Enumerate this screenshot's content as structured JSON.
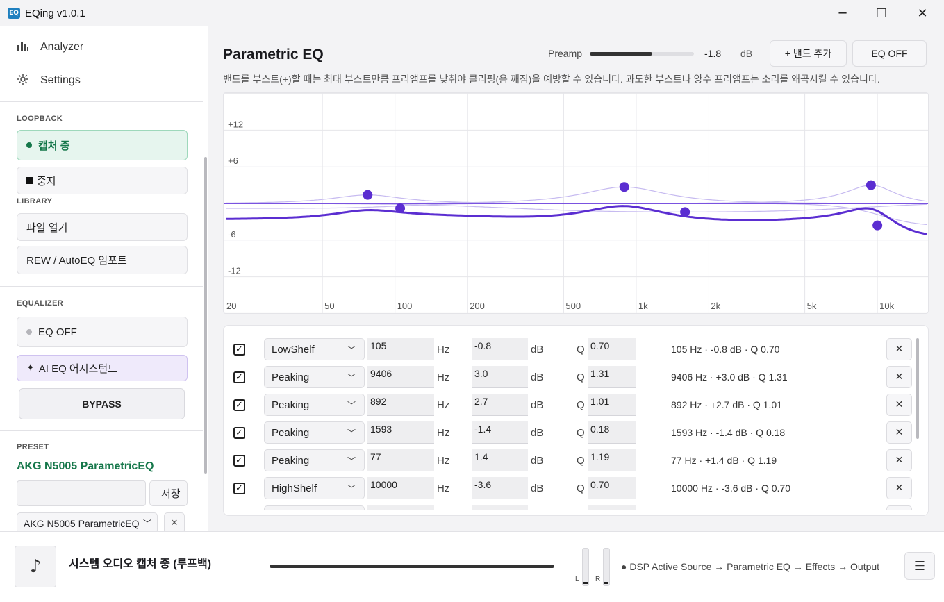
{
  "window": {
    "title": "EQing  v1.0.1",
    "icon_text": "EQ",
    "minimize": "─",
    "maximize": "☐",
    "close": "✕"
  },
  "sidebar": {
    "nav": [
      {
        "label": "Analyzer",
        "icon": "bar-chart-icon"
      },
      {
        "label": "Settings",
        "icon": "gear-icon"
      }
    ],
    "loopback": {
      "heading": "LOOPBACK",
      "capturing": "캡처 중",
      "stop": "중지"
    },
    "library": {
      "heading": "LIBRARY",
      "open_file": "파일 열기",
      "import": "REW / AutoEQ 임포트"
    },
    "equalizer": {
      "heading": "EQUALIZER",
      "eq_off": "EQ OFF",
      "ai_assistant": "AI EQ 어시스턴트",
      "bypass": "BYPASS"
    },
    "preset": {
      "heading": "PRESET",
      "name": "AKG N5005 ParametricEQ",
      "input_value": "",
      "save": "저장",
      "selected": "AKG N5005 ParametricEQ"
    }
  },
  "main": {
    "title": "Parametric EQ",
    "preamp": {
      "label": "Preamp",
      "value": "-1.8",
      "unit": "dB",
      "level": 0.6
    },
    "add_band": "+ 밴드 추가",
    "eq_off": "EQ OFF",
    "subtitle": "밴드를 부스트(+)할 때는 최대 부스트만큼 프리앰프를 낮춰야 클리핑(음 깨짐)을 예방할 수 있습니다. 과도한 부스트나 양수 프리앰프는 소리를 왜곡시킬 수 있습니다."
  },
  "graph": {
    "y_labels": [
      "+12",
      "+6",
      "-6",
      "-12"
    ],
    "x_labels": [
      "20",
      "50",
      "100",
      "200",
      "500",
      "1k",
      "2k",
      "5k",
      "10k"
    ],
    "colors": {
      "accent": "#5b2ed1",
      "grid": "#e6e6ea",
      "band_curve": "#c6baf0",
      "zero_line": "#7a52e0"
    }
  },
  "bands": [
    {
      "enabled": true,
      "type": "LowShelf",
      "freq": "105",
      "freq_unit": "Hz",
      "gain": "-0.8",
      "gain_unit": "dB",
      "q_label": "Q",
      "q": "0.70",
      "summary": "105 Hz · -0.8 dB · Q 0.70"
    },
    {
      "enabled": true,
      "type": "Peaking",
      "freq": "9406",
      "freq_unit": "Hz",
      "gain": "3.0",
      "gain_unit": "dB",
      "q_label": "Q",
      "q": "1.31",
      "summary": "9406 Hz · +3.0 dB · Q 1.31"
    },
    {
      "enabled": true,
      "type": "Peaking",
      "freq": "892",
      "freq_unit": "Hz",
      "gain": "2.7",
      "gain_unit": "dB",
      "q_label": "Q",
      "q": "1.01",
      "summary": "892 Hz · +2.7 dB · Q 1.01"
    },
    {
      "enabled": true,
      "type": "Peaking",
      "freq": "1593",
      "freq_unit": "Hz",
      "gain": "-1.4",
      "gain_unit": "dB",
      "q_label": "Q",
      "q": "0.18",
      "summary": "1593 Hz · -1.4 dB · Q 0.18"
    },
    {
      "enabled": true,
      "type": "Peaking",
      "freq": "77",
      "freq_unit": "Hz",
      "gain": "1.4",
      "gain_unit": "dB",
      "q_label": "Q",
      "q": "1.19",
      "summary": "77 Hz · +1.4 dB · Q 1.19"
    },
    {
      "enabled": true,
      "type": "HighShelf",
      "freq": "10000",
      "freq_unit": "Hz",
      "gain": "-3.6",
      "gain_unit": "dB",
      "q_label": "Q",
      "q": "0.70",
      "summary": "10000 Hz · -3.6 dB · Q 0.70"
    }
  ],
  "footer": {
    "album_icon": "♪",
    "now_playing": "시스템 오디오 캡처 중 (루프백)",
    "meter_left": "L",
    "meter_right": "R",
    "dsp_status": "● DSP Active   Source  →  Parametric EQ  →  Effects  →  Output",
    "menu_icon": "☰"
  }
}
